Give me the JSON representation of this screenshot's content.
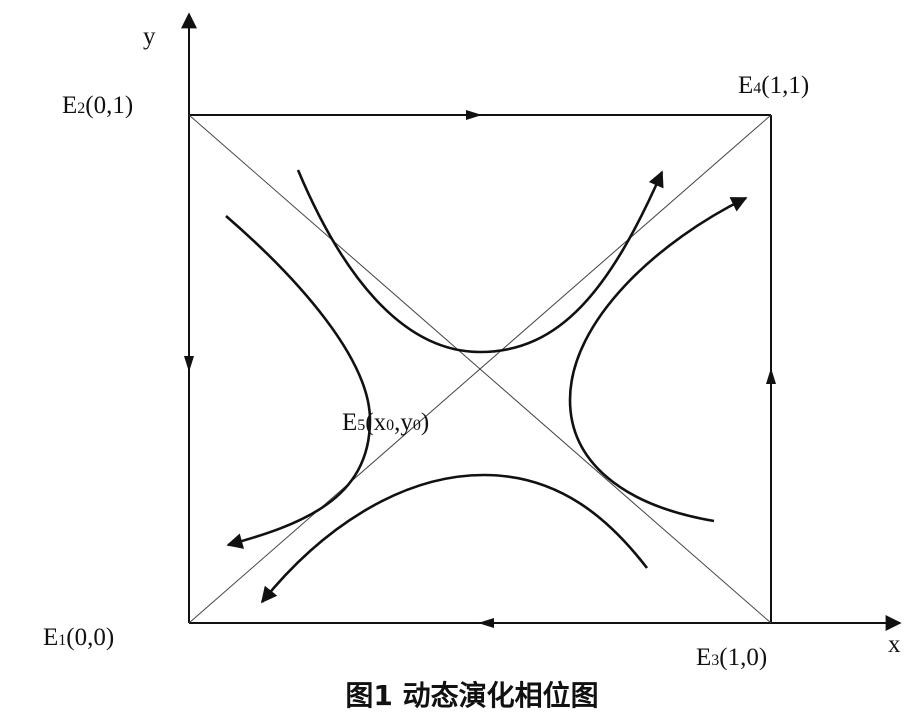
{
  "axes": {
    "y": "y",
    "x": "x"
  },
  "labels": [
    {
      "parts": [
        "E",
        "2",
        "(0,1)"
      ]
    },
    {
      "parts": [
        "E",
        "4",
        "(1,1)"
      ]
    },
    {
      "parts": [
        "E",
        "1",
        "(0,0)"
      ]
    },
    {
      "parts": [
        "E",
        "3",
        "(1,0)"
      ]
    },
    {
      "parts": [
        "E",
        "5",
        "(x",
        "0",
        ",y",
        "0",
        ")"
      ]
    }
  ],
  "caption": "图1  动态演化相位图"
}
